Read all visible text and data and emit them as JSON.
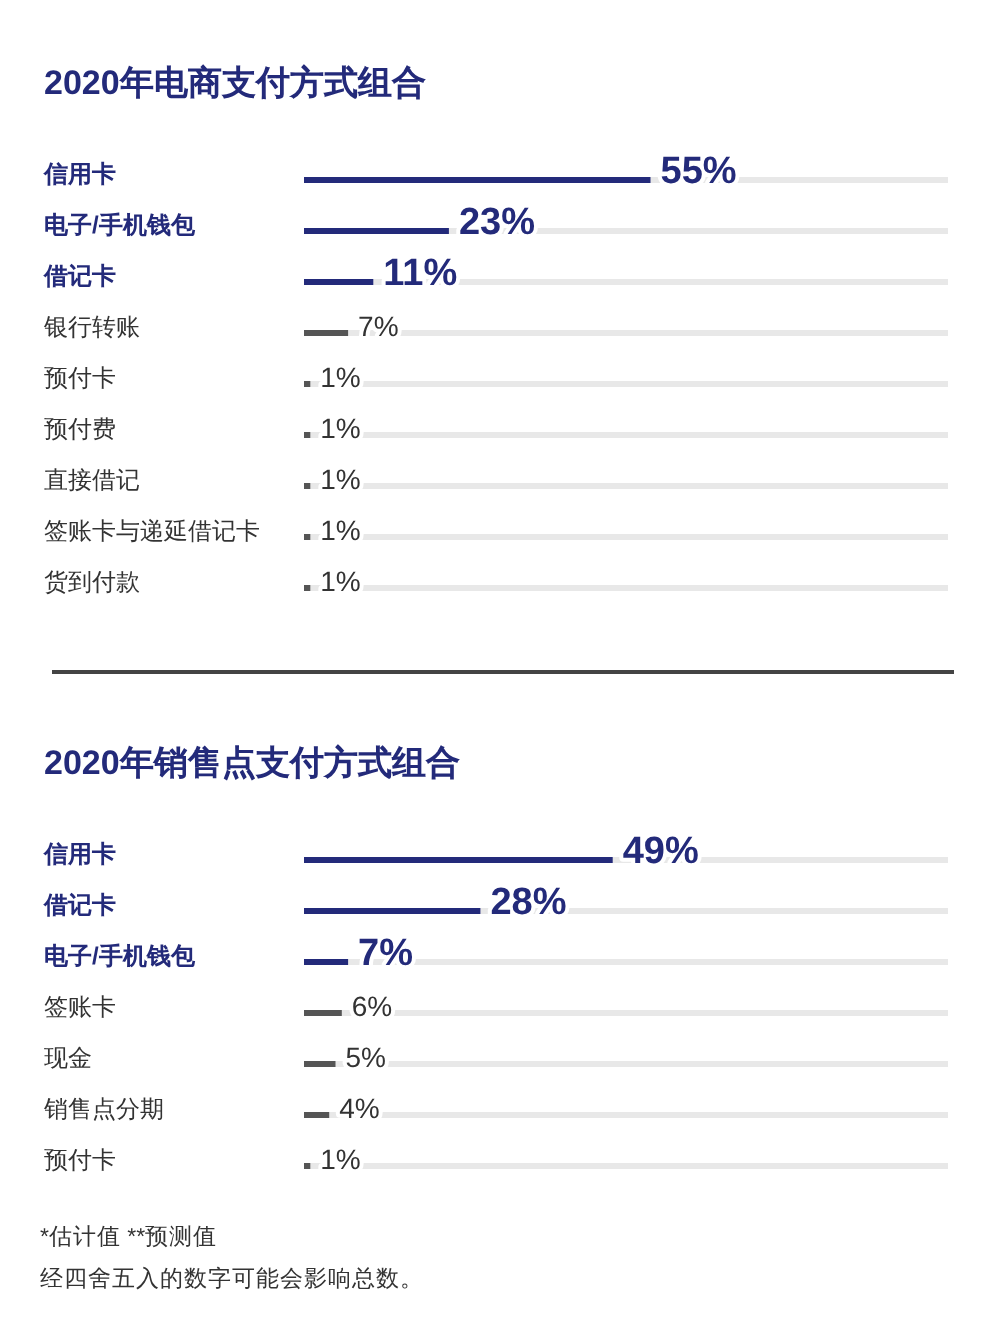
{
  "chart_data": [
    {
      "type": "bar",
      "orientation": "horizontal",
      "title": "2020年电商支付方式组合",
      "categories": [
        "信用卡",
        "电子/手机钱包",
        "借记卡",
        "银行转账",
        "预付卡",
        "预付费",
        "直接借记",
        "签账卡与递延借记卡",
        "货到付款"
      ],
      "values": [
        55,
        23,
        11,
        7,
        1,
        1,
        1,
        1,
        1
      ],
      "value_labels": [
        "55%",
        "23%",
        "11%",
        "7%",
        "1%",
        "1%",
        "1%",
        "1%",
        "1%"
      ],
      "colors": [
        "#232a7a",
        "#232a7a",
        "#232a7a",
        "#555555",
        "#555555",
        "#555555",
        "#555555",
        "#555555",
        "#555555"
      ],
      "grid": "y"
    },
    {
      "type": "bar",
      "orientation": "horizontal",
      "title": "2020年销售点支付方式组合",
      "categories": [
        "信用卡",
        "借记卡",
        "电子/手机钱包",
        "签账卡",
        "现金",
        "销售点分期",
        "预付卡"
      ],
      "values": [
        49,
        28,
        7,
        6,
        5,
        4,
        1
      ],
      "value_labels": [
        "49%",
        "28%",
        "7%",
        "6%",
        "5%",
        "4%",
        "1%"
      ],
      "colors": [
        "#232a7a",
        "#232a7a",
        "#232a7a",
        "#555555",
        "#555555",
        "#555555",
        "#555555"
      ],
      "grid": "y",
      "annotations": [
        "*估计值   **预测值",
        "经四舍五入的数字可能会影响总数。"
      ]
    }
  ]
}
